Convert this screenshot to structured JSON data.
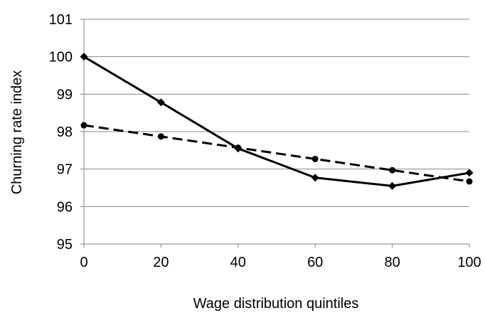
{
  "chart_data": {
    "type": "line",
    "title": "",
    "xlabel": "Wage distribution quintiles",
    "ylabel": "Churning rate index",
    "x": [
      0,
      20,
      40,
      60,
      80,
      100
    ],
    "xlim": [
      0,
      100
    ],
    "ylim": [
      95,
      101
    ],
    "xticks": [
      0,
      20,
      40,
      60,
      80,
      100
    ],
    "yticks": [
      95,
      96,
      97,
      98,
      99,
      100,
      101
    ],
    "grid": "horizontal",
    "legend": "none",
    "series": [
      {
        "style": "solid",
        "marker": "diamond",
        "color": "#000000",
        "values": [
          100,
          98.78,
          97.55,
          96.77,
          96.55,
          96.9
        ]
      },
      {
        "style": "dashed",
        "marker": "circle",
        "color": "#000000",
        "values": [
          98.17,
          97.87,
          97.57,
          97.27,
          96.97,
          96.67
        ]
      }
    ],
    "colors": {
      "gridline": "#868686",
      "axis": "#868686"
    }
  }
}
